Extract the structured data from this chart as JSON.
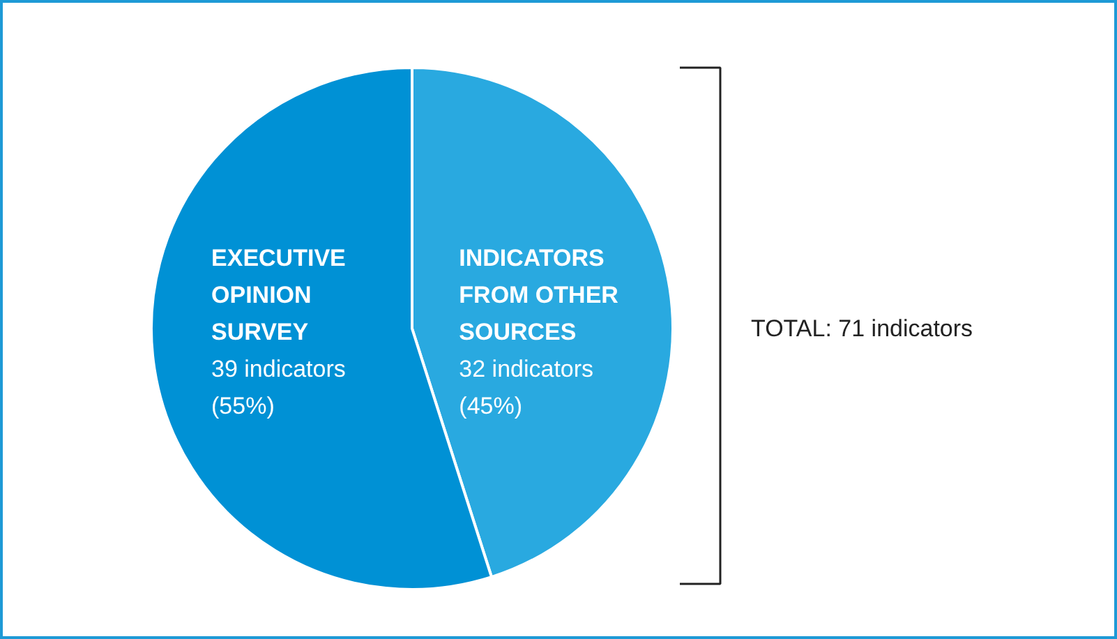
{
  "chart_data": {
    "type": "pie",
    "categories": [
      "INDICATORS\nFROM OTHER\nSOURCES",
      "EXECUTIVE\nOPINION\nSURVEY"
    ],
    "values": [
      32,
      39
    ],
    "colors": [
      "#29a9e0",
      "#0091d5"
    ],
    "value_labels": [
      "32 indicators\n(45%)",
      "39 indicators\n(55%)"
    ],
    "annotations": [
      "TOTAL: 71 indicators"
    ]
  }
}
